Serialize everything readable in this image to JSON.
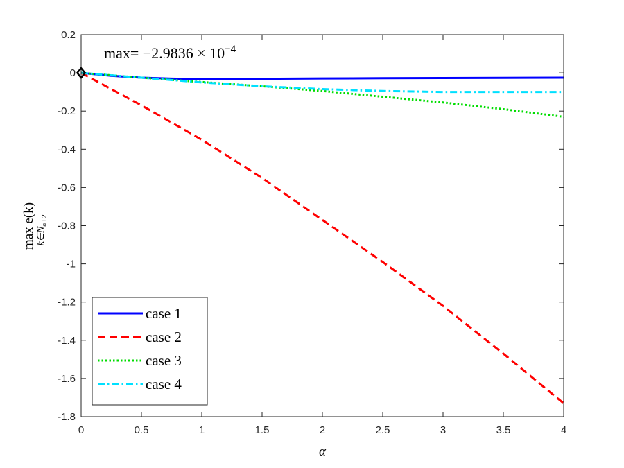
{
  "chart_data": {
    "type": "line",
    "xlabel": "α",
    "ylabel": {
      "main": "max e(k)",
      "subscript": "k∈N",
      "subsubscript": "α+2"
    },
    "annotation": {
      "prefix": "max= −2.9836 × 10",
      "exponent": "−4"
    },
    "xlim": [
      0,
      4
    ],
    "ylim": [
      -1.8,
      0.2
    ],
    "xticks": [
      0,
      0.5,
      1,
      1.5,
      2,
      2.5,
      3,
      3.5,
      4
    ],
    "xtick_labels": [
      "0",
      "0.5",
      "1",
      "1.5",
      "2",
      "2.5",
      "3",
      "3.5",
      "4"
    ],
    "yticks": [
      -1.8,
      -1.6,
      -1.4,
      -1.2,
      -1,
      -0.8,
      -0.6,
      -0.4,
      -0.2,
      0,
      0.2
    ],
    "ytick_labels": [
      "-1.8",
      "-1.6",
      "-1.4",
      "-1.2",
      "-1",
      "-0.8",
      "-0.6",
      "-0.4",
      "-0.2",
      "0",
      "0.2"
    ],
    "grid": false,
    "legend_position": "bottom-left",
    "marker": {
      "shape": "diamond",
      "x": 0,
      "y": 0
    },
    "series": [
      {
        "name": "case 1",
        "color": "#0000ff",
        "dash": "solid",
        "x": [
          0,
          0.25,
          0.5,
          0.75,
          1,
          1.5,
          2,
          2.5,
          3,
          3.5,
          4
        ],
        "y": [
          0,
          -0.015,
          -0.025,
          -0.03,
          -0.032,
          -0.031,
          -0.029,
          -0.028,
          -0.027,
          -0.026,
          -0.025
        ]
      },
      {
        "name": "case 2",
        "color": "#ff0000",
        "dash": "dashed",
        "x": [
          0,
          0.5,
          1,
          1.5,
          2,
          2.5,
          3,
          3.5,
          4
        ],
        "y": [
          0,
          -0.17,
          -0.35,
          -0.55,
          -0.77,
          -0.99,
          -1.22,
          -1.47,
          -1.73
        ]
      },
      {
        "name": "case 3",
        "color": "#00dd00",
        "dash": "dotted",
        "x": [
          0,
          0.5,
          1,
          1.5,
          2,
          2.5,
          3,
          3.5,
          4
        ],
        "y": [
          0,
          -0.025,
          -0.048,
          -0.07,
          -0.095,
          -0.125,
          -0.155,
          -0.19,
          -0.23
        ]
      },
      {
        "name": "case 4",
        "color": "#00e0ff",
        "dash": "dashdot",
        "x": [
          0,
          0.5,
          1,
          1.5,
          2,
          2.5,
          3,
          3.5,
          4
        ],
        "y": [
          0,
          -0.025,
          -0.05,
          -0.07,
          -0.085,
          -0.095,
          -0.1,
          -0.1,
          -0.1
        ]
      }
    ]
  }
}
